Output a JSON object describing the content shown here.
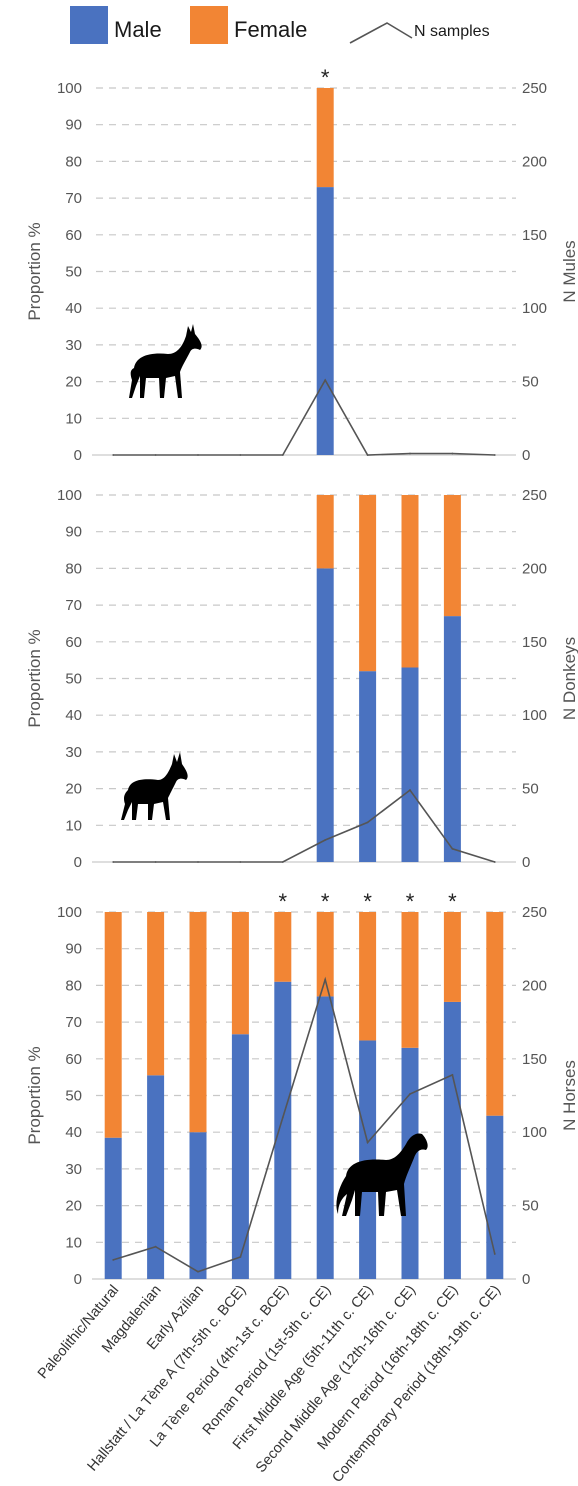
{
  "legend": {
    "male": "Male",
    "female": "Female",
    "n_samples": "N samples"
  },
  "colors": {
    "male": "#4a72c0",
    "female": "#f28534",
    "n_line": "#555555",
    "grid": "#c8c8c8",
    "silhouette": "#000000"
  },
  "icons": [
    "mule-silhouette-icon",
    "donkey-silhouette-icon",
    "horse-silhouette-icon"
  ],
  "chart_data": [
    {
      "type": "bar",
      "stacked": true,
      "panel": "mules",
      "ylabel": "Proportion %",
      "y2label": "N Mules",
      "ylim": [
        0,
        100
      ],
      "y2lim": [
        0,
        250
      ],
      "yticks": [
        0,
        10,
        20,
        30,
        40,
        50,
        60,
        70,
        80,
        90,
        100
      ],
      "y2ticks": [
        0,
        50,
        100,
        150,
        200,
        250
      ],
      "grid": true,
      "categories": [
        "Paleolithic/Natural",
        "Magdalenian",
        "Early Azilian",
        "Hallstatt / La Tène A (7th-5th c. BCE)",
        "La Tène Period (4th-1st c. BCE)",
        "Roman Period (1st-5th c. CE)",
        "First Middle Age (5th-11th c. CE)",
        "Second Middle Age (12th-16th c. CE)",
        "Modern Period (16th-18th c. CE)",
        "Contemporary Period (18th-19th c. CE)"
      ],
      "series": [
        {
          "name": "Male",
          "values": [
            null,
            null,
            null,
            null,
            null,
            73,
            null,
            null,
            null,
            null
          ]
        },
        {
          "name": "Female",
          "values": [
            null,
            null,
            null,
            null,
            null,
            27,
            null,
            null,
            null,
            null
          ]
        },
        {
          "name": "N samples",
          "axis": "right",
          "values": [
            0,
            0,
            0,
            0,
            0,
            51,
            0,
            1,
            1,
            0
          ]
        }
      ],
      "significant": [
        false,
        false,
        false,
        false,
        false,
        true,
        false,
        false,
        false,
        false
      ],
      "annotation": "*"
    },
    {
      "type": "bar",
      "stacked": true,
      "panel": "donkeys",
      "ylabel": "Proportion %",
      "y2label": "N Donkeys",
      "ylim": [
        0,
        100
      ],
      "y2lim": [
        0,
        250
      ],
      "yticks": [
        0,
        10,
        20,
        30,
        40,
        50,
        60,
        70,
        80,
        90,
        100
      ],
      "y2ticks": [
        0,
        50,
        100,
        150,
        200,
        250
      ],
      "grid": true,
      "categories": [
        "Paleolithic/Natural",
        "Magdalenian",
        "Early Azilian",
        "Hallstatt / La Tène A (7th-5th c. BCE)",
        "La Tène Period (4th-1st c. BCE)",
        "Roman Period (1st-5th c. CE)",
        "First Middle Age (5th-11th c. CE)",
        "Second Middle Age (12th-16th c. CE)",
        "Modern Period (16th-18th c. CE)",
        "Contemporary Period (18th-19th c. CE)"
      ],
      "series": [
        {
          "name": "Male",
          "values": [
            null,
            null,
            null,
            null,
            null,
            80,
            52,
            53,
            67,
            null
          ]
        },
        {
          "name": "Female",
          "values": [
            null,
            null,
            null,
            null,
            null,
            20,
            48,
            47,
            33,
            null
          ]
        },
        {
          "name": "N samples",
          "axis": "right",
          "values": [
            0,
            0,
            0,
            0,
            0,
            15,
            27,
            49,
            9,
            0
          ]
        }
      ],
      "significant": [
        false,
        false,
        false,
        false,
        false,
        false,
        false,
        false,
        false,
        false
      ],
      "annotation": "*"
    },
    {
      "type": "bar",
      "stacked": true,
      "panel": "horses",
      "ylabel": "Proportion %",
      "y2label": "N Horses",
      "ylim": [
        0,
        100
      ],
      "y2lim": [
        0,
        250
      ],
      "yticks": [
        0,
        10,
        20,
        30,
        40,
        50,
        60,
        70,
        80,
        90,
        100
      ],
      "y2ticks": [
        0,
        50,
        100,
        150,
        200,
        250
      ],
      "grid": true,
      "categories": [
        "Paleolithic/Natural",
        "Magdalenian",
        "Early Azilian",
        "Hallstatt / La Tène A (7th-5th c. BCE)",
        "La Tène Period (4th-1st c. BCE)",
        "Roman Period (1st-5th c. CE)",
        "First Middle Age (5th-11th c. CE)",
        "Second Middle Age (12th-16th c. CE)",
        "Modern Period (16th-18th c. CE)",
        "Contemporary Period (18th-19th c. CE)"
      ],
      "series": [
        {
          "name": "Male",
          "values": [
            38.5,
            55.5,
            40,
            66.7,
            81,
            77,
            65,
            63,
            75.5,
            44.5
          ]
        },
        {
          "name": "Female",
          "values": [
            61.5,
            44.5,
            60,
            33.3,
            19,
            23,
            35,
            37,
            24.5,
            55.5
          ]
        },
        {
          "name": "N samples",
          "axis": "right",
          "values": [
            13,
            22,
            5,
            15,
            110,
            204,
            93,
            126,
            139,
            17
          ]
        }
      ],
      "significant": [
        false,
        false,
        false,
        false,
        true,
        true,
        true,
        true,
        true,
        false
      ],
      "annotation": "*"
    }
  ]
}
